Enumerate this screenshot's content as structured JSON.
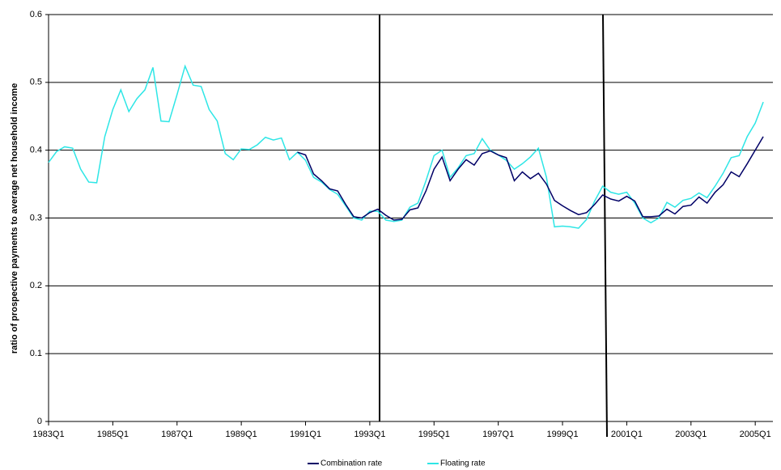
{
  "chart_data": {
    "type": "line",
    "y_label": "ratio of prospective payments to average net household income",
    "categories": [
      "1983Q1",
      null,
      null,
      null,
      null,
      null,
      null,
      null,
      "1985Q1",
      null,
      null,
      null,
      null,
      null,
      null,
      null,
      "1987Q1",
      null,
      null,
      null,
      null,
      null,
      null,
      null,
      "1989Q1",
      null,
      null,
      null,
      null,
      null,
      null,
      null,
      "1991Q1",
      null,
      null,
      null,
      null,
      null,
      null,
      null,
      "1993Q1",
      null,
      null,
      null,
      null,
      null,
      null,
      null,
      "1995Q1",
      null,
      null,
      null,
      null,
      null,
      null,
      null,
      "1997Q1",
      null,
      null,
      null,
      null,
      null,
      null,
      null,
      "1999Q1",
      null,
      null,
      null,
      null,
      null,
      null,
      null,
      "2001Q1",
      null,
      null,
      null,
      null,
      null,
      null,
      null,
      "2003Q1",
      null,
      null,
      null,
      null,
      null,
      null,
      null,
      "2005Q1",
      null
    ],
    "series": [
      {
        "name": "Combination rate",
        "color": "#000066",
        "values": [
          null,
          null,
          null,
          null,
          null,
          null,
          null,
          null,
          null,
          null,
          null,
          null,
          null,
          null,
          null,
          null,
          null,
          null,
          null,
          null,
          null,
          null,
          null,
          null,
          null,
          null,
          null,
          null,
          null,
          null,
          null,
          0.397,
          0.393,
          0.365,
          0.355,
          0.343,
          0.34,
          0.32,
          0.302,
          0.3,
          0.308,
          0.313,
          0.304,
          0.297,
          0.298,
          0.312,
          0.315,
          0.34,
          0.372,
          0.39,
          0.355,
          0.372,
          0.386,
          0.378,
          0.395,
          0.399,
          0.393,
          0.389,
          0.355,
          0.368,
          0.358,
          0.366,
          0.35,
          0.326,
          0.318,
          0.311,
          0.305,
          0.308,
          0.32,
          0.334,
          0.328,
          0.325,
          0.332,
          0.325,
          0.302,
          0.302,
          0.303,
          0.313,
          0.306,
          0.317,
          0.319,
          0.331,
          0.322,
          0.338,
          0.349,
          0.368,
          0.361,
          0.38,
          0.4,
          0.42
        ]
      },
      {
        "name": "Floating rate",
        "color": "#2ee6e6",
        "values": [
          0.382,
          0.398,
          0.405,
          0.403,
          0.372,
          0.353,
          0.352,
          0.42,
          0.46,
          0.489,
          0.457,
          0.476,
          0.489,
          0.522,
          0.443,
          0.442,
          0.482,
          0.524,
          0.496,
          0.494,
          0.46,
          0.443,
          0.395,
          0.386,
          0.402,
          0.401,
          0.408,
          0.419,
          0.415,
          0.418,
          0.386,
          0.397,
          0.385,
          0.36,
          0.353,
          0.342,
          0.335,
          0.318,
          0.3,
          0.297,
          0.31,
          0.31,
          0.297,
          0.295,
          0.297,
          0.316,
          0.322,
          0.355,
          0.392,
          0.4,
          0.36,
          0.374,
          0.392,
          0.395,
          0.417,
          0.4,
          0.393,
          0.385,
          0.372,
          0.38,
          0.39,
          0.403,
          0.36,
          0.287,
          0.288,
          0.287,
          0.285,
          0.298,
          0.325,
          0.347,
          0.338,
          0.335,
          0.338,
          0.322,
          0.3,
          0.293,
          0.3,
          0.323,
          0.316,
          0.326,
          0.329,
          0.337,
          0.33,
          0.347,
          0.366,
          0.389,
          0.392,
          0.42,
          0.44,
          0.471
        ]
      }
    ],
    "ylim": [
      0,
      0.6
    ],
    "yticks": [
      0,
      0.1,
      0.2,
      0.3,
      0.4,
      0.5,
      0.6
    ],
    "grid": true,
    "legend": "bottom"
  }
}
